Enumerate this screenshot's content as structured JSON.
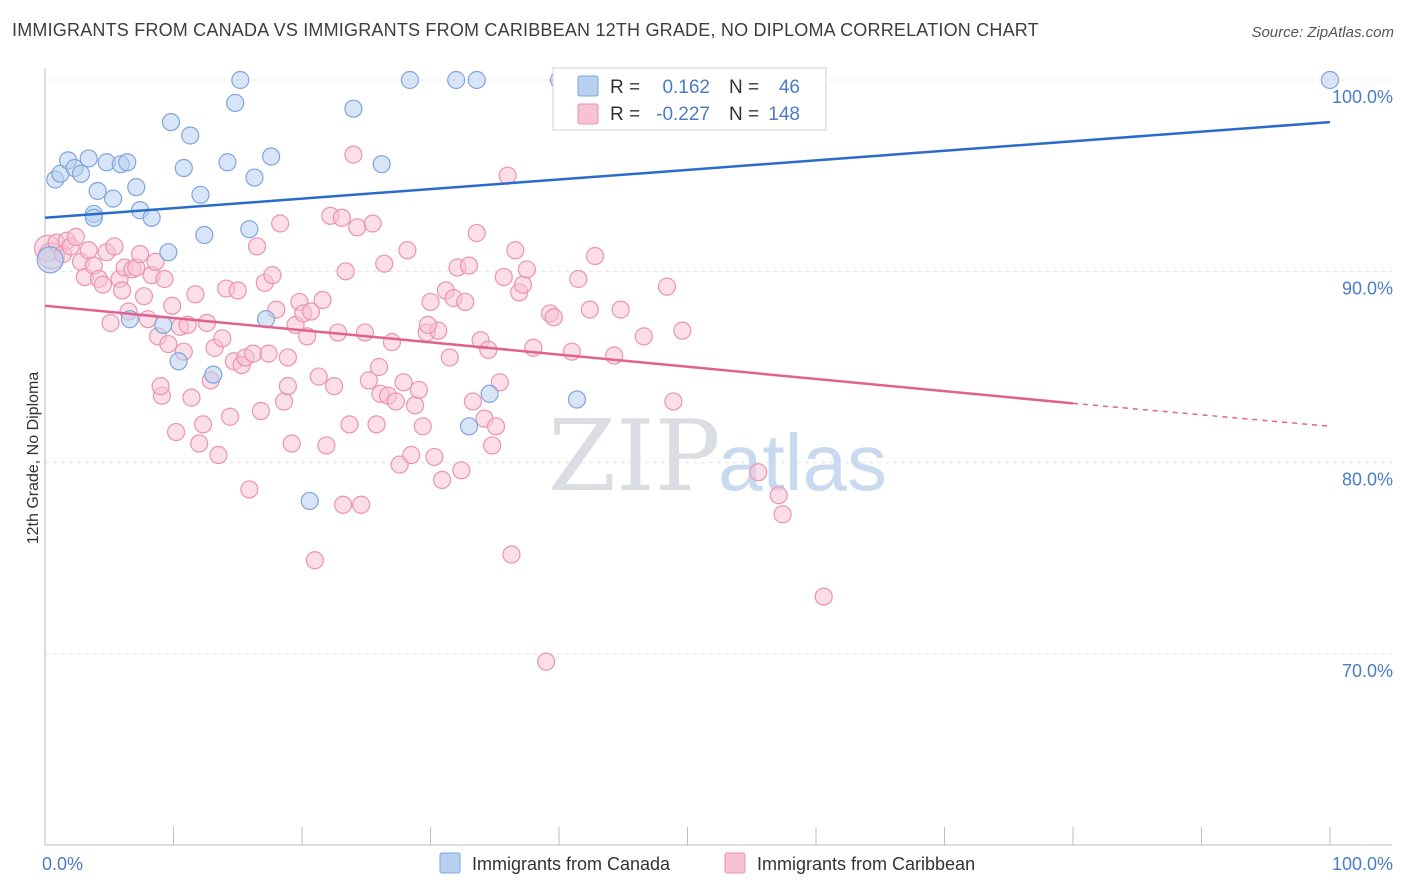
{
  "title": "IMMIGRANTS FROM CANADA VS IMMIGRANTS FROM CARIBBEAN 12TH GRADE, NO DIPLOMA CORRELATION CHART",
  "source": "Source: ZipAtlas.com",
  "watermark": {
    "zip": "ZIP",
    "atlas": "atlas"
  },
  "colors": {
    "canada_fill": "#b8d0f0",
    "canada_stroke": "#7ea6dc",
    "canada_line": "#2a6cc7",
    "caribbean_fill": "#f7c3d3",
    "caribbean_stroke": "#ec93b0",
    "caribbean_line": "#e0628e",
    "label_blue": "#4a7cc7"
  },
  "stats": {
    "r_label": "R =",
    "n_label": "N =",
    "canada": {
      "r": "0.162",
      "n": "46"
    },
    "caribbean": {
      "r": "-0.227",
      "n": "148"
    }
  },
  "legend": {
    "canada": "Immigrants from Canada",
    "caribbean": "Immigrants from Caribbean"
  },
  "chart_data": {
    "type": "scatter",
    "xlabel": "",
    "ylabel": "12th Grade, No Diploma",
    "xlim": [
      0,
      100
    ],
    "ylim": [
      62,
      102
    ],
    "x_tick_labels": [
      {
        "value": 0,
        "label": "0.0%"
      },
      {
        "value": 100,
        "label": "100.0%"
      }
    ],
    "y_tick_labels": [
      {
        "value": 100,
        "label": "100.0%"
      },
      {
        "value": 90,
        "label": "90.0%"
      },
      {
        "value": 80,
        "label": "80.0%"
      },
      {
        "value": 70,
        "label": "70.0%"
      }
    ],
    "grid": true,
    "legend_position": "bottom",
    "series": [
      {
        "name": "Immigrants from Canada",
        "trend": {
          "x": [
            0,
            100
          ],
          "y": [
            92.8,
            97.8
          ]
        },
        "points": [
          [
            0.4,
            90.6
          ],
          [
            0.8,
            94.8
          ],
          [
            1.2,
            95.1
          ],
          [
            1.8,
            95.8
          ],
          [
            2.3,
            95.4
          ],
          [
            2.8,
            95.1
          ],
          [
            3.4,
            95.9
          ],
          [
            3.8,
            93.0
          ],
          [
            4.1,
            94.2
          ],
          [
            4.8,
            95.7
          ],
          [
            5.3,
            93.8
          ],
          [
            5.9,
            95.6
          ],
          [
            6.4,
            95.7
          ],
          [
            7.1,
            94.4
          ],
          [
            7.4,
            93.2
          ],
          [
            8.3,
            92.8
          ],
          [
            9.2,
            87.2
          ],
          [
            9.6,
            91.0
          ],
          [
            9.8,
            97.8
          ],
          [
            10.4,
            85.3
          ],
          [
            10.8,
            95.4
          ],
          [
            11.3,
            97.1
          ],
          [
            12.1,
            94.0
          ],
          [
            12.4,
            91.9
          ],
          [
            13.1,
            84.6
          ],
          [
            14.2,
            95.7
          ],
          [
            14.8,
            98.8
          ],
          [
            15.2,
            100.0
          ],
          [
            15.9,
            92.2
          ],
          [
            16.3,
            94.9
          ],
          [
            17.2,
            87.5
          ],
          [
            17.6,
            96.0
          ],
          [
            20.6,
            78.0
          ],
          [
            24.0,
            98.5
          ],
          [
            26.2,
            95.6
          ],
          [
            28.4,
            100.0
          ],
          [
            32.0,
            100.0
          ],
          [
            33.0,
            81.9
          ],
          [
            33.6,
            100.0
          ],
          [
            34.6,
            83.6
          ],
          [
            40.0,
            100.0
          ],
          [
            41.4,
            83.3
          ],
          [
            47.5,
            100.0
          ],
          [
            100,
            100.0
          ],
          [
            3.8,
            92.8
          ],
          [
            6.6,
            87.5
          ]
        ]
      },
      {
        "name": "Immigrants from Caribbean",
        "trend": {
          "x": [
            0,
            80
          ],
          "y": [
            88.2,
            83.1
          ]
        },
        "trend_dashed": {
          "x": [
            80,
            100
          ],
          "y": [
            83.1,
            81.9
          ]
        },
        "points": [
          [
            0.2,
            91.2
          ],
          [
            0.5,
            90.8
          ],
          [
            0.9,
            91.5
          ],
          [
            1.4,
            90.9
          ],
          [
            1.7,
            91.6
          ],
          [
            2.0,
            91.3
          ],
          [
            2.4,
            91.8
          ],
          [
            2.8,
            90.5
          ],
          [
            3.1,
            89.7
          ],
          [
            3.4,
            91.1
          ],
          [
            3.8,
            90.3
          ],
          [
            4.2,
            89.6
          ],
          [
            4.5,
            89.3
          ],
          [
            4.8,
            91.0
          ],
          [
            5.1,
            87.3
          ],
          [
            5.4,
            91.3
          ],
          [
            5.8,
            89.6
          ],
          [
            6.0,
            89.0
          ],
          [
            6.2,
            90.2
          ],
          [
            6.5,
            87.9
          ],
          [
            6.8,
            90.1
          ],
          [
            7.1,
            90.2
          ],
          [
            7.4,
            90.9
          ],
          [
            7.7,
            88.7
          ],
          [
            8.0,
            87.5
          ],
          [
            8.3,
            89.8
          ],
          [
            8.6,
            90.5
          ],
          [
            8.8,
            86.6
          ],
          [
            9.1,
            83.5
          ],
          [
            9.3,
            89.6
          ],
          [
            9.6,
            86.2
          ],
          [
            9.9,
            88.2
          ],
          [
            10.2,
            81.6
          ],
          [
            10.5,
            87.1
          ],
          [
            10.8,
            85.8
          ],
          [
            11.1,
            87.2
          ],
          [
            11.4,
            83.4
          ],
          [
            11.7,
            88.8
          ],
          [
            12.0,
            81.0
          ],
          [
            12.3,
            82.0
          ],
          [
            12.6,
            87.3
          ],
          [
            12.9,
            84.3
          ],
          [
            13.2,
            86.0
          ],
          [
            13.5,
            80.4
          ],
          [
            13.8,
            86.5
          ],
          [
            14.1,
            89.1
          ],
          [
            14.4,
            82.4
          ],
          [
            14.7,
            85.3
          ],
          [
            15.0,
            89.0
          ],
          [
            15.3,
            85.1
          ],
          [
            15.6,
            85.5
          ],
          [
            15.9,
            78.6
          ],
          [
            16.2,
            85.7
          ],
          [
            16.5,
            91.3
          ],
          [
            16.8,
            82.7
          ],
          [
            17.1,
            89.4
          ],
          [
            17.4,
            85.7
          ],
          [
            17.7,
            89.8
          ],
          [
            18.0,
            88.0
          ],
          [
            18.3,
            92.5
          ],
          [
            18.6,
            83.2
          ],
          [
            18.9,
            84.0
          ],
          [
            19.2,
            81.0
          ],
          [
            19.5,
            87.2
          ],
          [
            19.8,
            88.4
          ],
          [
            20.1,
            87.8
          ],
          [
            20.4,
            86.6
          ],
          [
            20.7,
            87.9
          ],
          [
            21.0,
            74.9
          ],
          [
            21.3,
            84.5
          ],
          [
            21.6,
            88.5
          ],
          [
            21.9,
            80.9
          ],
          [
            22.2,
            92.9
          ],
          [
            22.5,
            84.0
          ],
          [
            22.8,
            86.8
          ],
          [
            23.1,
            92.8
          ],
          [
            23.4,
            90.0
          ],
          [
            23.7,
            82.0
          ],
          [
            24.0,
            96.1
          ],
          [
            24.3,
            92.3
          ],
          [
            24.6,
            77.8
          ],
          [
            24.9,
            86.8
          ],
          [
            25.2,
            84.3
          ],
          [
            25.5,
            92.5
          ],
          [
            25.8,
            82.0
          ],
          [
            26.1,
            83.6
          ],
          [
            26.4,
            90.4
          ],
          [
            26.7,
            83.5
          ],
          [
            27.0,
            86.3
          ],
          [
            27.3,
            83.2
          ],
          [
            27.6,
            79.9
          ],
          [
            27.9,
            84.2
          ],
          [
            28.2,
            91.1
          ],
          [
            28.5,
            80.4
          ],
          [
            28.8,
            83.0
          ],
          [
            29.1,
            83.8
          ],
          [
            29.4,
            81.9
          ],
          [
            29.7,
            86.8
          ],
          [
            30.0,
            88.4
          ],
          [
            30.3,
            80.3
          ],
          [
            30.6,
            86.9
          ],
          [
            30.9,
            79.1
          ],
          [
            31.2,
            89.0
          ],
          [
            31.5,
            85.5
          ],
          [
            31.8,
            88.6
          ],
          [
            32.1,
            90.2
          ],
          [
            32.4,
            79.6
          ],
          [
            32.7,
            88.4
          ],
          [
            33.0,
            90.3
          ],
          [
            33.3,
            83.2
          ],
          [
            33.6,
            92.0
          ],
          [
            33.9,
            86.4
          ],
          [
            34.2,
            82.3
          ],
          [
            34.5,
            85.9
          ],
          [
            34.8,
            80.9
          ],
          [
            35.1,
            81.9
          ],
          [
            35.4,
            84.2
          ],
          [
            35.7,
            89.7
          ],
          [
            36.0,
            95.0
          ],
          [
            36.3,
            75.2
          ],
          [
            36.6,
            91.1
          ],
          [
            36.9,
            88.9
          ],
          [
            37.2,
            89.3
          ],
          [
            37.5,
            90.1
          ],
          [
            38.0,
            86.0
          ],
          [
            39.3,
            87.8
          ],
          [
            39.6,
            87.6
          ],
          [
            39.0,
            69.6
          ],
          [
            41.0,
            85.8
          ],
          [
            42.4,
            88.0
          ],
          [
            42.8,
            90.8
          ],
          [
            44.3,
            85.6
          ],
          [
            44.8,
            88.0
          ],
          [
            46.6,
            86.6
          ],
          [
            47.2,
            100.0
          ],
          [
            48.4,
            89.2
          ],
          [
            48.9,
            83.2
          ],
          [
            49.6,
            86.9
          ],
          [
            55.5,
            79.5
          ],
          [
            57.1,
            78.3
          ],
          [
            57.4,
            77.3
          ],
          [
            60.6,
            73.0
          ],
          [
            41.5,
            89.6
          ],
          [
            26.0,
            85.0
          ],
          [
            18.9,
            85.5
          ],
          [
            23.2,
            77.8
          ],
          [
            29.8,
            87.2
          ],
          [
            9.0,
            84.0
          ]
        ]
      }
    ]
  }
}
